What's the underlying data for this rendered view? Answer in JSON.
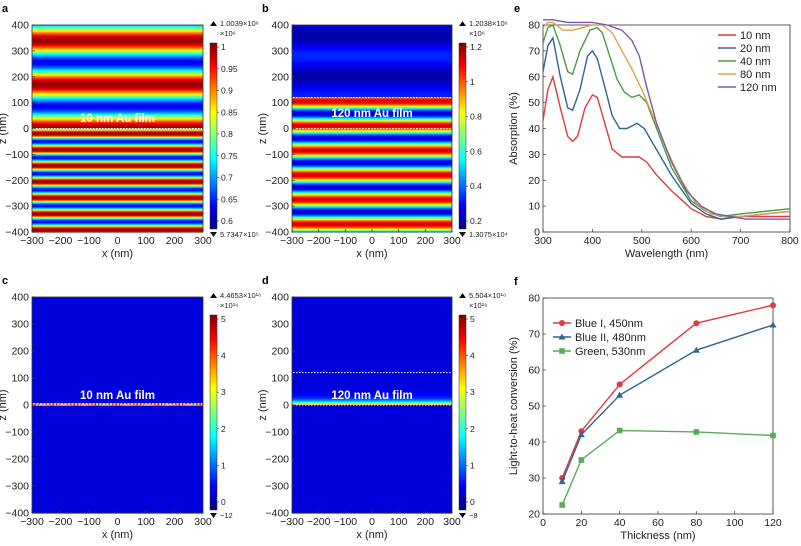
{
  "panels": {
    "a": {
      "letter": "a",
      "film_label": "10 nm Au film",
      "max_label": "1.0039×10⁶",
      "min_label": "5.7347×10⁵",
      "cbar_exp": "×10⁶",
      "cbar_ticks": [
        "0.6",
        "0.65",
        "0.7",
        "0.75",
        "0.8",
        "0.85",
        "0.9",
        "0.95",
        "1"
      ],
      "xlabel": "x (nm)",
      "ylabel": "z (nm)"
    },
    "b": {
      "letter": "b",
      "film_label": "120 nm Au film",
      "max_label": "1.2038×10⁶",
      "min_label": "1.3075×10⁴",
      "cbar_exp": "×10⁶",
      "cbar_ticks": [
        "0.2",
        "0.4",
        "0.6",
        "0.8",
        "1",
        "1.2"
      ],
      "xlabel": "x (nm)",
      "ylabel": "z (nm)"
    },
    "c": {
      "letter": "c",
      "film_label": "10 nm Au film",
      "max_label": "4.4653×10¹⁶",
      "min_label": "−12",
      "cbar_exp": "×10¹⁶",
      "cbar_ticks": [
        "0",
        "1",
        "2",
        "3",
        "4",
        "5"
      ],
      "xlabel": "x (nm)",
      "ylabel": "z (nm)"
    },
    "d": {
      "letter": "d",
      "film_label": "120 nm Au film",
      "max_label": "5.504×10¹⁶",
      "min_label": "−8",
      "cbar_exp": "×10¹⁶",
      "cbar_ticks": [
        "0",
        "1",
        "2",
        "3",
        "4",
        "5"
      ],
      "xlabel": "x (nm)",
      "ylabel": "z (nm)"
    }
  },
  "map_axes": {
    "x_ticks": [
      "−300",
      "−200",
      "−100",
      "0",
      "100",
      "200",
      "300"
    ],
    "z_ticks": [
      "400",
      "300",
      "200",
      "100",
      "0",
      "−100",
      "−200",
      "−300",
      "−400"
    ]
  },
  "chart_data": [
    {
      "type": "line",
      "panel": "e",
      "xlabel": "Wavelength (nm)",
      "ylabel": "Absorption (%)",
      "xlim": [
        300,
        800
      ],
      "ylim": [
        0,
        80
      ],
      "x_ticks": [
        300,
        400,
        500,
        600,
        700,
        800
      ],
      "y_ticks": [
        0,
        10,
        20,
        30,
        40,
        50,
        60,
        70,
        80
      ],
      "legend_position": "top-right",
      "series": [
        {
          "name": "10 nm",
          "color": "#e0393e",
          "points": [
            [
              300,
              43
            ],
            [
              310,
              55
            ],
            [
              320,
              60
            ],
            [
              335,
              48
            ],
            [
              350,
              37
            ],
            [
              360,
              35
            ],
            [
              370,
              37
            ],
            [
              385,
              48
            ],
            [
              400,
              53
            ],
            [
              410,
              52
            ],
            [
              425,
              42
            ],
            [
              440,
              32
            ],
            [
              460,
              29
            ],
            [
              480,
              29
            ],
            [
              495,
              29
            ],
            [
              510,
              27
            ],
            [
              530,
              22
            ],
            [
              560,
              16
            ],
            [
              600,
              9
            ],
            [
              630,
              6
            ],
            [
              660,
              5
            ],
            [
              700,
              6
            ],
            [
              750,
              6
            ],
            [
              800,
              6
            ]
          ]
        },
        {
          "name": "20 nm",
          "color": "#2f6690",
          "points": [
            [
              300,
              62
            ],
            [
              310,
              72
            ],
            [
              320,
              75
            ],
            [
              335,
              60
            ],
            [
              350,
              48
            ],
            [
              360,
              47
            ],
            [
              375,
              55
            ],
            [
              390,
              68
            ],
            [
              400,
              70
            ],
            [
              410,
              67
            ],
            [
              425,
              56
            ],
            [
              440,
              45
            ],
            [
              455,
              40
            ],
            [
              470,
              40
            ],
            [
              490,
              42
            ],
            [
              505,
              40
            ],
            [
              520,
              35
            ],
            [
              560,
              22
            ],
            [
              600,
              11
            ],
            [
              630,
              7
            ],
            [
              660,
              5
            ],
            [
              700,
              6
            ],
            [
              750,
              7
            ],
            [
              800,
              8
            ]
          ]
        },
        {
          "name": "40 nm",
          "color": "#4a9a48",
          "points": [
            [
              300,
              73
            ],
            [
              310,
              79
            ],
            [
              320,
              80
            ],
            [
              335,
              72
            ],
            [
              350,
              62
            ],
            [
              360,
              61
            ],
            [
              375,
              70
            ],
            [
              395,
              78
            ],
            [
              410,
              79
            ],
            [
              420,
              77
            ],
            [
              435,
              68
            ],
            [
              450,
              59
            ],
            [
              465,
              54
            ],
            [
              480,
              52
            ],
            [
              495,
              53
            ],
            [
              510,
              50
            ],
            [
              530,
              40
            ],
            [
              560,
              25
            ],
            [
              600,
              12
            ],
            [
              630,
              8
            ],
            [
              660,
              6
            ],
            [
              700,
              7
            ],
            [
              750,
              8
            ],
            [
              800,
              9
            ]
          ]
        },
        {
          "name": "80 nm",
          "color": "#e0a24a",
          "points": [
            [
              300,
              79
            ],
            [
              310,
              81
            ],
            [
              320,
              81
            ],
            [
              340,
              78
            ],
            [
              360,
              78
            ],
            [
              380,
              79
            ],
            [
              400,
              80
            ],
            [
              420,
              80
            ],
            [
              440,
              77
            ],
            [
              460,
              70
            ],
            [
              480,
              63
            ],
            [
              500,
              55
            ],
            [
              520,
              46
            ],
            [
              550,
              32
            ],
            [
              580,
              20
            ],
            [
              610,
              11
            ],
            [
              640,
              7
            ],
            [
              670,
              6
            ],
            [
              700,
              6
            ],
            [
              750,
              7
            ],
            [
              800,
              8
            ]
          ]
        },
        {
          "name": "120 nm",
          "color": "#7a5aa8",
          "points": [
            [
              300,
              82
            ],
            [
              320,
              82
            ],
            [
              350,
              81
            ],
            [
              380,
              81
            ],
            [
              400,
              81
            ],
            [
              430,
              80
            ],
            [
              460,
              78
            ],
            [
              480,
              74
            ],
            [
              495,
              68
            ],
            [
              510,
              56
            ],
            [
              530,
              42
            ],
            [
              560,
              27
            ],
            [
              590,
              16
            ],
            [
              620,
              10
            ],
            [
              650,
              7
            ],
            [
              680,
              6
            ],
            [
              710,
              5
            ],
            [
              750,
              5
            ],
            [
              800,
              5
            ]
          ]
        }
      ]
    },
    {
      "type": "line",
      "panel": "f",
      "xlabel": "Thickness (nm)",
      "ylabel": "Light-to-heat conversion (%)",
      "xlim": [
        0,
        120
      ],
      "ylim": [
        20,
        80
      ],
      "x_ticks": [
        0,
        20,
        40,
        60,
        80,
        100,
        120
      ],
      "y_ticks": [
        20,
        30,
        40,
        50,
        60,
        70,
        80
      ],
      "legend_position": "top-left",
      "series": [
        {
          "name": "Blue I, 450nm",
          "color": "#e0393e",
          "marker": "circle",
          "points": [
            [
              10,
              30
            ],
            [
              20,
              43
            ],
            [
              40,
              56
            ],
            [
              80,
              73
            ],
            [
              120,
              78
            ]
          ]
        },
        {
          "name": "Blue II, 480nm",
          "color": "#2f6690",
          "marker": "triangle",
          "points": [
            [
              10,
              29
            ],
            [
              20,
              42
            ],
            [
              40,
              53
            ],
            [
              80,
              65.5
            ],
            [
              120,
              72.5
            ]
          ]
        },
        {
          "name": "Green, 530nm",
          "color": "#5aaa5a",
          "marker": "square",
          "points": [
            [
              10,
              22.5
            ],
            [
              20,
              35
            ],
            [
              40,
              43.2
            ],
            [
              80,
              42.8
            ],
            [
              120,
              41.8
            ]
          ]
        }
      ]
    }
  ]
}
